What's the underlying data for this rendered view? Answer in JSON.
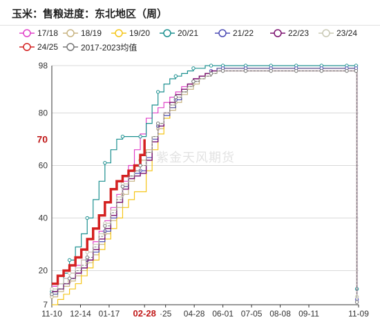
{
  "title": "玉米：售粮进度：东北地区（周）",
  "watermark": "紫金天风期货",
  "chart_data": {
    "type": "line",
    "title": "玉米：售粮进度：东北地区（周）",
    "xlabel": "",
    "ylabel": "",
    "ylim": [
      7,
      98
    ],
    "y_ticks": [
      7,
      20,
      40,
      60,
      80,
      98
    ],
    "y_tick_labels": [
      "7",
      "20",
      "40",
      "60",
      "80",
      "98"
    ],
    "x_ticks": [
      {
        "d": 0,
        "label": "11-10"
      },
      {
        "d": 34,
        "label": "12-14"
      },
      {
        "d": 68,
        "label": "01-17"
      },
      {
        "d": 110,
        "label": "02-28"
      },
      {
        "d": 135,
        "label": "·25"
      },
      {
        "d": 169,
        "label": "04-28"
      },
      {
        "d": 203,
        "label": "06-01"
      },
      {
        "d": 237,
        "label": "07-05"
      },
      {
        "d": 271,
        "label": "08-08"
      },
      {
        "d": 305,
        "label": "09-11"
      },
      {
        "d": 364,
        "label": "11-09"
      }
    ],
    "highlight_x_label": "02-28",
    "highlight_y_label": "70",
    "highlight_y_value": 70,
    "grid": true,
    "legend": "top",
    "series": [
      {
        "name": "17/18",
        "color": "#e040c8",
        "linewidth": 1.2,
        "marker": false,
        "x": [
          0,
          7,
          14,
          21,
          28,
          35,
          42,
          49,
          56,
          63,
          70,
          77,
          84,
          91,
          98,
          105,
          112,
          119,
          126,
          133,
          140,
          147,
          154,
          161,
          168,
          175,
          182,
          189,
          196,
          203,
          361,
          362
        ],
        "y": [
          14,
          15,
          17,
          19,
          22,
          24,
          27,
          31,
          35,
          39,
          44,
          49,
          54,
          60,
          66,
          72,
          78,
          80,
          82,
          84,
          86,
          88,
          90,
          91,
          93,
          94,
          95,
          96,
          96,
          97,
          97,
          12
        ]
      },
      {
        "name": "18/19",
        "color": "#c8b482",
        "linewidth": 1.2,
        "marker": true,
        "x": [
          0,
          7,
          14,
          21,
          28,
          35,
          42,
          49,
          56,
          63,
          70,
          77,
          84,
          91,
          98,
          105,
          112,
          119,
          126,
          133,
          140,
          147,
          154,
          161,
          168,
          175,
          182,
          189,
          196,
          203,
          230,
          260,
          290,
          320,
          350,
          361,
          362
        ],
        "y": [
          10,
          12,
          14,
          16,
          18,
          20,
          23,
          26,
          30,
          34,
          39,
          44,
          49,
          54,
          58,
          62,
          66,
          70,
          74,
          78,
          81,
          84,
          87,
          89,
          91,
          93,
          94,
          95,
          96,
          97,
          97,
          97,
          97,
          97,
          97,
          97,
          10
        ]
      },
      {
        "name": "19/20",
        "color": "#f5c518",
        "linewidth": 1.2,
        "marker": false,
        "x": [
          0,
          7,
          14,
          21,
          28,
          35,
          42,
          49,
          56,
          63,
          70,
          77,
          84,
          91,
          98,
          105,
          112,
          119,
          126,
          133,
          140,
          147,
          154,
          161,
          168,
          175,
          182,
          189,
          196,
          203,
          361,
          362
        ],
        "y": [
          7,
          9,
          11,
          13,
          15,
          18,
          21,
          24,
          28,
          32,
          36,
          40,
          44,
          47,
          50,
          50,
          58,
          66,
          72,
          78,
          82,
          85,
          88,
          90,
          92,
          94,
          95,
          96,
          97,
          97,
          97,
          14
        ]
      },
      {
        "name": "20/21",
        "color": "#1a8f8f",
        "linewidth": 1.2,
        "marker": true,
        "x": [
          0,
          7,
          14,
          21,
          28,
          35,
          42,
          49,
          56,
          63,
          70,
          77,
          84,
          91,
          98,
          105,
          112,
          119,
          126,
          133,
          140,
          147,
          154,
          161,
          168,
          175,
          182,
          189,
          196,
          203,
          230,
          260,
          290,
          320,
          350,
          361,
          362
        ],
        "y": [
          12,
          15,
          19,
          24,
          29,
          34,
          40,
          47,
          54,
          61,
          66,
          70,
          71,
          71,
          71,
          71,
          76,
          83,
          88,
          91,
          93,
          94,
          95,
          96,
          97,
          97,
          98,
          98,
          98,
          98,
          98,
          98,
          98,
          98,
          98,
          98,
          13
        ]
      },
      {
        "name": "21/22",
        "color": "#4a4ab4",
        "linewidth": 1.2,
        "marker": true,
        "x": [
          0,
          7,
          14,
          21,
          28,
          35,
          42,
          49,
          56,
          63,
          70,
          77,
          84,
          91,
          98,
          105,
          112,
          119,
          126,
          133,
          140,
          147,
          154,
          161,
          168,
          175,
          182,
          189,
          196,
          203,
          230,
          260,
          290,
          320,
          350,
          361,
          362
        ],
        "y": [
          11,
          13,
          15,
          17,
          19,
          21,
          24,
          27,
          31,
          35,
          40,
          46,
          52,
          56,
          57,
          58,
          63,
          70,
          75,
          79,
          82,
          85,
          88,
          90,
          92,
          94,
          95,
          96,
          97,
          97,
          97,
          97,
          97,
          97,
          97,
          97,
          9
        ]
      },
      {
        "name": "22/23",
        "color": "#7a0f6e",
        "linewidth": 1.4,
        "marker": false,
        "x": [
          0,
          7,
          14,
          21,
          28,
          35,
          42,
          49,
          56,
          63,
          70,
          77,
          84,
          91,
          98,
          105,
          112,
          119,
          126,
          133,
          140,
          147,
          154,
          161,
          168,
          175,
          182,
          189,
          196,
          203,
          361,
          362
        ],
        "y": [
          12,
          13,
          15,
          17,
          19,
          21,
          24,
          28,
          32,
          36,
          41,
          46,
          51,
          55,
          56,
          57,
          62,
          69,
          75,
          80,
          84,
          87,
          89,
          91,
          93,
          94,
          95,
          96,
          96,
          96,
          96,
          11
        ]
      },
      {
        "name": "23/24",
        "color": "#c8c8b4",
        "linewidth": 1.2,
        "marker": true,
        "x": [
          0,
          7,
          14,
          21,
          28,
          35,
          42,
          49,
          56,
          63,
          70,
          77,
          84,
          91,
          98,
          105,
          112,
          119,
          126,
          133,
          140,
          147,
          154,
          161,
          168,
          175,
          182,
          189,
          196,
          203,
          230,
          260,
          290,
          320,
          350,
          361,
          362
        ],
        "y": [
          13,
          15,
          17,
          19,
          21,
          24,
          27,
          30,
          34,
          38,
          43,
          48,
          53,
          56,
          58,
          60,
          65,
          71,
          76,
          80,
          83,
          86,
          88,
          90,
          92,
          93,
          94,
          95,
          96,
          96,
          96,
          96,
          96,
          96,
          96,
          96,
          10
        ]
      },
      {
        "name": "24/25",
        "color": "#d42020",
        "linewidth": 3.5,
        "marker": false,
        "x": [
          0,
          7,
          14,
          21,
          28,
          35,
          42,
          49,
          56,
          63,
          70,
          77,
          84,
          91,
          98,
          105,
          110
        ],
        "y": [
          15,
          18,
          20,
          22,
          25,
          28,
          32,
          36,
          41,
          46,
          51,
          54,
          56,
          58,
          60,
          64,
          70
        ]
      },
      {
        "name": "2017-2023均值",
        "color": "#777777",
        "linewidth": 1.0,
        "marker": true,
        "dash": true,
        "x": [
          0,
          7,
          14,
          21,
          28,
          35,
          42,
          49,
          56,
          63,
          70,
          77,
          84,
          91,
          98,
          105,
          112,
          119,
          126,
          133,
          140,
          147,
          154,
          161,
          168,
          175,
          182,
          189,
          196,
          203,
          230,
          260,
          290,
          320,
          350,
          361,
          362
        ],
        "y": [
          11,
          13,
          15,
          17,
          20,
          22,
          25,
          29,
          33,
          37,
          42,
          47,
          52,
          56,
          58,
          60,
          65,
          71,
          76,
          80,
          83,
          86,
          88,
          90,
          92,
          93,
          94,
          95,
          96,
          96,
          96,
          96,
          96,
          96,
          96,
          96,
          8
        ]
      }
    ]
  }
}
